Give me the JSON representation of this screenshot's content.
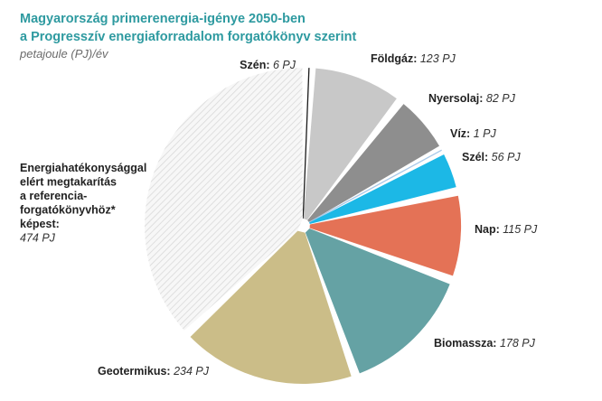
{
  "chart_data": {
    "type": "pie",
    "title_line1": "Magyarország primerenergia-igénye 2050-ben",
    "title_line2": "a Progresszív energiaforradalom forgatókönyv szerint",
    "unit": "petajoule (PJ)/év",
    "slices": [
      {
        "name": "Szén:",
        "value": 6,
        "value_label": "6 PJ",
        "color": "#1a1a1a"
      },
      {
        "name": "Földgáz:",
        "value": 123,
        "value_label": "123 PJ",
        "color": "#c8c8c8"
      },
      {
        "name": "Nyersolaj:",
        "value": 82,
        "value_label": "82 PJ",
        "color": "#8e8e8e"
      },
      {
        "name": "Víz:",
        "value": 1,
        "value_label": "1 PJ",
        "color": "#a8c8e8"
      },
      {
        "name": "Szél:",
        "value": 56,
        "value_label": "56 PJ",
        "color": "#1cb8e6"
      },
      {
        "name": "Nap:",
        "value": 115,
        "value_label": "115 PJ",
        "color": "#e47256"
      },
      {
        "name": "Biomassza:",
        "value": 178,
        "value_label": "178 PJ",
        "color": "#65a2a4"
      },
      {
        "name": "Geotermikus:",
        "value": 234,
        "value_label": "234 PJ",
        "color": "#cbbd88"
      },
      {
        "name_lines": [
          "Energiahatékonysággal",
          "elért megtakarítás",
          "a referencia-",
          "forgatókönyvhöz*",
          "képest:"
        ],
        "value": 474,
        "value_label": "474 PJ",
        "color": "#eeeeee",
        "pattern": "hatched"
      }
    ]
  }
}
